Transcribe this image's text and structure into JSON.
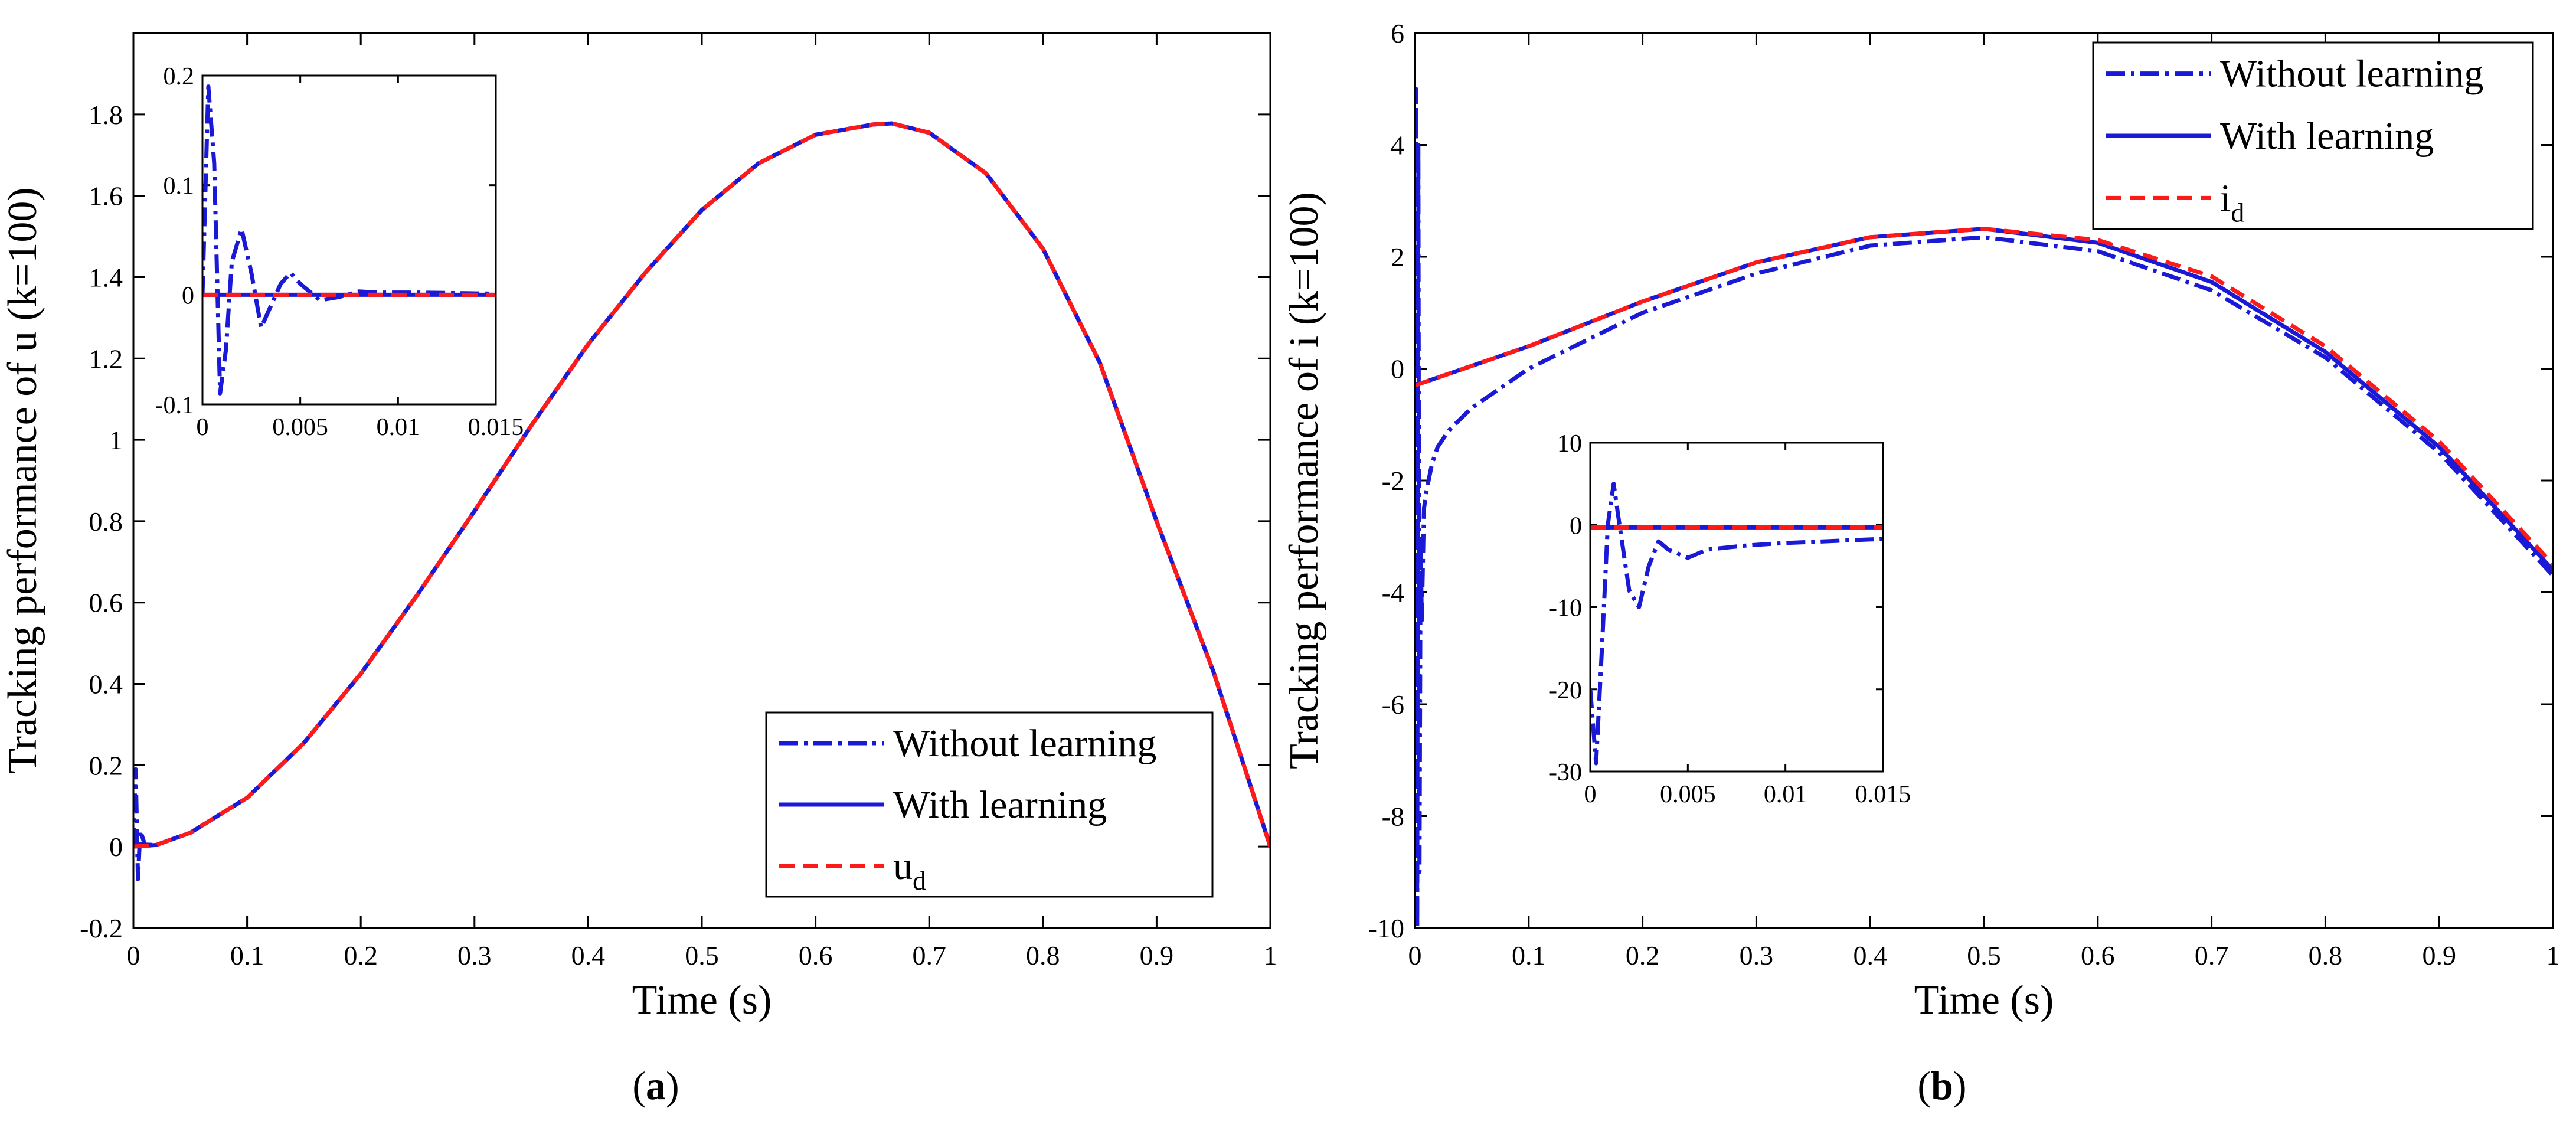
{
  "chart_data": [
    {
      "panel_label": "a",
      "type": "line",
      "xlabel": "Time (s)",
      "ylabel": "Tracking performance of u (k=100)",
      "xlim": [
        0,
        1
      ],
      "ylim": [
        -0.2,
        2.0
      ],
      "xticks": [
        0,
        0.1,
        0.2,
        0.3,
        0.4,
        0.5,
        0.6,
        0.7,
        0.8,
        0.9,
        1
      ],
      "yticks": [
        -0.2,
        0,
        0.2,
        0.4,
        0.6,
        0.8,
        1,
        1.2,
        1.4,
        1.6,
        1.8
      ],
      "xtick_labels": [
        "0",
        "0.1",
        "0.2",
        "0.3",
        "0.4",
        "0.5",
        "0.6",
        "0.7",
        "0.8",
        "0.9",
        "1"
      ],
      "ytick_labels": [
        "-0.2",
        "0",
        "0.2",
        "0.4",
        "0.6",
        "0.8",
        "1",
        "1.2",
        "1.4",
        "1.6",
        "1.8"
      ],
      "legend": {
        "position": "bottom-right",
        "entries": [
          {
            "label": "Without learning",
            "style": "dashdot",
            "color": "#1a1ad6"
          },
          {
            "label": "With learning",
            "style": "solid",
            "color": "#1a1ad6"
          },
          {
            "label": "u",
            "subscript": "d",
            "style": "dashed",
            "color": "#ff1a1a"
          }
        ]
      },
      "series": [
        {
          "name": "Without learning",
          "x": [
            0,
            0.002,
            0.004,
            0.006,
            0.01,
            0.02,
            0.05,
            0.1,
            0.15,
            0.2,
            0.25,
            0.3,
            0.35,
            0.4,
            0.45,
            0.5,
            0.55,
            0.6,
            0.65,
            0.667,
            0.7,
            0.75,
            0.8,
            0.85,
            0.9,
            0.95,
            1.0
          ],
          "y": [
            0,
            0.19,
            -0.08,
            0.04,
            0.005,
            0.004,
            0.034,
            0.12,
            0.255,
            0.425,
            0.62,
            0.825,
            1.035,
            1.235,
            1.41,
            1.565,
            1.68,
            1.75,
            1.775,
            1.778,
            1.755,
            1.655,
            1.47,
            1.19,
            0.8,
            0.43,
            0.0
          ]
        },
        {
          "name": "With learning",
          "x": [
            0,
            0.01,
            0.02,
            0.05,
            0.1,
            0.15,
            0.2,
            0.25,
            0.3,
            0.35,
            0.4,
            0.45,
            0.5,
            0.55,
            0.6,
            0.65,
            0.667,
            0.7,
            0.75,
            0.8,
            0.85,
            0.9,
            0.95,
            1.0
          ],
          "y": [
            0,
            0.002,
            0.004,
            0.034,
            0.12,
            0.255,
            0.425,
            0.62,
            0.825,
            1.035,
            1.235,
            1.41,
            1.565,
            1.68,
            1.75,
            1.775,
            1.778,
            1.755,
            1.655,
            1.47,
            1.19,
            0.8,
            0.43,
            0.0
          ]
        },
        {
          "name": "u_d",
          "x": [
            0,
            0.01,
            0.02,
            0.05,
            0.1,
            0.15,
            0.2,
            0.25,
            0.3,
            0.35,
            0.4,
            0.45,
            0.5,
            0.55,
            0.6,
            0.65,
            0.667,
            0.7,
            0.75,
            0.8,
            0.85,
            0.9,
            0.95,
            1.0
          ],
          "y": [
            0,
            0.002,
            0.004,
            0.034,
            0.12,
            0.255,
            0.425,
            0.62,
            0.825,
            1.035,
            1.235,
            1.41,
            1.565,
            1.68,
            1.75,
            1.775,
            1.778,
            1.755,
            1.655,
            1.47,
            1.19,
            0.8,
            0.43,
            0.0
          ]
        }
      ],
      "inset": {
        "position": "top-left",
        "xlim": [
          0,
          0.015
        ],
        "ylim": [
          -0.1,
          0.2
        ],
        "xticks": [
          0,
          0.005,
          0.01,
          0.015
        ],
        "yticks": [
          -0.1,
          0,
          0.1,
          0.2
        ],
        "xtick_labels": [
          "0",
          "0.005",
          "0.01",
          "0.015"
        ],
        "ytick_labels": [
          "-0.1",
          "0",
          "0.1",
          "0.2"
        ],
        "series": [
          {
            "name": "Without learning",
            "x": [
              0,
              0.0003,
              0.0006,
              0.0009,
              0.0012,
              0.0015,
              0.002,
              0.0025,
              0.003,
              0.0035,
              0.004,
              0.0045,
              0.005,
              0.006,
              0.007,
              0.008,
              0.009,
              0.011,
              0.015
            ],
            "y": [
              0.0,
              0.19,
              0.12,
              -0.09,
              -0.05,
              0.03,
              0.06,
              0.02,
              -0.03,
              -0.01,
              0.01,
              0.02,
              0.01,
              -0.005,
              -0.002,
              0.003,
              0.002,
              0.002,
              0.001
            ]
          },
          {
            "name": "With learning",
            "x": [
              0,
              0.001,
              0.005,
              0.01,
              0.015
            ],
            "y": [
              0,
              0,
              0,
              0,
              0
            ]
          },
          {
            "name": "u_d",
            "x": [
              0,
              0.001,
              0.005,
              0.01,
              0.015
            ],
            "y": [
              0,
              0,
              0,
              0,
              0
            ]
          }
        ]
      }
    },
    {
      "panel_label": "b",
      "type": "line",
      "xlabel": "Time (s)",
      "ylabel": "Tracking performance of i (k=100)",
      "xlim": [
        0,
        1
      ],
      "ylim": [
        -10,
        6
      ],
      "xticks": [
        0,
        0.1,
        0.2,
        0.3,
        0.4,
        0.5,
        0.6,
        0.7,
        0.8,
        0.9,
        1
      ],
      "yticks": [
        -10,
        -8,
        -6,
        -4,
        -2,
        0,
        2,
        4,
        6
      ],
      "xtick_labels": [
        "0",
        "0.1",
        "0.2",
        "0.3",
        "0.4",
        "0.5",
        "0.6",
        "0.7",
        "0.8",
        "0.9",
        "1"
      ],
      "ytick_labels": [
        "-10",
        "-8",
        "-6",
        "-4",
        "-2",
        "0",
        "2",
        "4",
        "6"
      ],
      "legend": {
        "position": "top-right",
        "entries": [
          {
            "label": "Without learning",
            "style": "dashdot",
            "color": "#1a1ad6"
          },
          {
            "label": "With learning",
            "style": "solid",
            "color": "#1a1ad6"
          },
          {
            "label": "i",
            "subscript": "d",
            "style": "dashed",
            "color": "#ff1a1a"
          }
        ]
      },
      "series": [
        {
          "name": "Without learning",
          "x": [
            0,
            0.001,
            0.002,
            0.003,
            0.004,
            0.005,
            0.006,
            0.008,
            0.01,
            0.015,
            0.02,
            0.03,
            0.05,
            0.1,
            0.2,
            0.3,
            0.4,
            0.5,
            0.6,
            0.7,
            0.8,
            0.9,
            1.0
          ],
          "y": [
            0,
            5.0,
            -10.0,
            4.0,
            -9.0,
            -3.0,
            -4.5,
            -2.5,
            -2.2,
            -1.7,
            -1.4,
            -1.1,
            -0.7,
            0.0,
            1.0,
            1.7,
            2.2,
            2.35,
            2.1,
            1.4,
            0.2,
            -1.5,
            -3.7
          ]
        },
        {
          "name": "With learning",
          "x": [
            0,
            0.1,
            0.2,
            0.3,
            0.4,
            0.5,
            0.6,
            0.7,
            0.8,
            0.9,
            1.0
          ],
          "y": [
            -0.3,
            0.4,
            1.2,
            1.9,
            2.35,
            2.5,
            2.25,
            1.55,
            0.3,
            -1.4,
            -3.6
          ]
        },
        {
          "name": "i_d",
          "x": [
            0,
            0.1,
            0.2,
            0.3,
            0.4,
            0.5,
            0.6,
            0.7,
            0.8,
            0.9,
            1.0
          ],
          "y": [
            -0.3,
            0.4,
            1.2,
            1.9,
            2.35,
            2.5,
            2.3,
            1.65,
            0.4,
            -1.3,
            -3.5
          ]
        }
      ],
      "inset": {
        "position": "center",
        "xlim": [
          0,
          0.015
        ],
        "ylim": [
          -30,
          10
        ],
        "xticks": [
          0,
          0.005,
          0.01,
          0.015
        ],
        "yticks": [
          -30,
          -20,
          -10,
          0,
          10
        ],
        "xtick_labels": [
          "0",
          "0.005",
          "0.01",
          "0.015"
        ],
        "ytick_labels": [
          "-30",
          "-20",
          "-10",
          "0",
          "10"
        ],
        "series": [
          {
            "name": "Without learning",
            "x": [
              0,
              0.0003,
              0.0006,
              0.0009,
              0.0012,
              0.0015,
              0.002,
              0.0025,
              0.003,
              0.0035,
              0.004,
              0.005,
              0.006,
              0.008,
              0.01,
              0.015
            ],
            "y": [
              -20,
              -29,
              -15,
              0,
              5,
              0,
              -8,
              -10,
              -5,
              -2,
              -3,
              -4,
              -3,
              -2.5,
              -2.2,
              -1.7
            ]
          },
          {
            "name": "With learning",
            "x": [
              0,
              0.001,
              0.005,
              0.01,
              0.015
            ],
            "y": [
              -0.3,
              -0.3,
              -0.3,
              -0.3,
              -0.3
            ]
          },
          {
            "name": "i_d",
            "x": [
              0,
              0.001,
              0.005,
              0.01,
              0.015
            ],
            "y": [
              -0.3,
              -0.3,
              -0.3,
              -0.3,
              -0.3
            ]
          }
        ]
      }
    }
  ]
}
